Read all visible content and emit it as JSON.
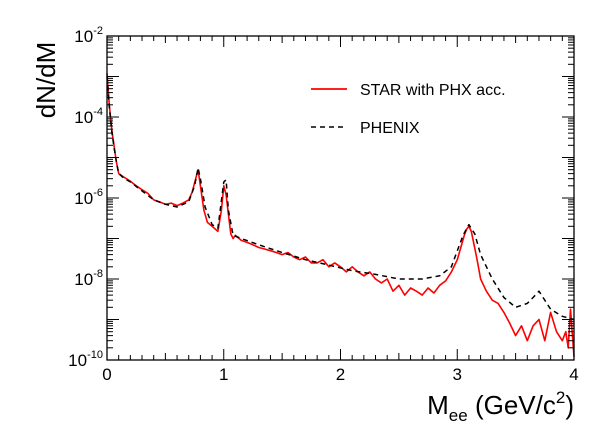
{
  "chart_data": {
    "type": "line",
    "title": "",
    "xlabel": {
      "base": "M",
      "sub": "ee",
      "rest": " (GeV/c",
      "sup": "2",
      "end": ")"
    },
    "ylabel": "dN/dM",
    "xlim": [
      0,
      4
    ],
    "ylim": [
      1e-10,
      0.01
    ],
    "yscale": "log",
    "grid": false,
    "legend_position": "top-right",
    "x_ticks": [
      {
        "value": 0,
        "label": "0"
      },
      {
        "value": 1,
        "label": "1"
      },
      {
        "value": 2,
        "label": "2"
      },
      {
        "value": 3,
        "label": "3"
      },
      {
        "value": 4,
        "label": "4"
      }
    ],
    "y_ticks": [
      {
        "value": 1e-10,
        "base": "10",
        "exp": "-10"
      },
      {
        "value": 1e-08,
        "base": "10",
        "exp": "-8"
      },
      {
        "value": 1e-06,
        "base": "10",
        "exp": "-6"
      },
      {
        "value": 0.0001,
        "base": "10",
        "exp": "-4"
      },
      {
        "value": 0.01,
        "base": "10",
        "exp": "-2"
      }
    ],
    "series": [
      {
        "name": "STAR with PHX acc.",
        "color": "#ff0000",
        "style": "solid",
        "x": [
          0.0,
          0.02,
          0.04,
          0.06,
          0.08,
          0.1,
          0.15,
          0.2,
          0.25,
          0.3,
          0.35,
          0.4,
          0.45,
          0.5,
          0.55,
          0.6,
          0.65,
          0.7,
          0.73,
          0.76,
          0.78,
          0.8,
          0.83,
          0.86,
          0.9,
          0.95,
          0.98,
          1.0,
          1.02,
          1.04,
          1.06,
          1.08,
          1.1,
          1.15,
          1.2,
          1.25,
          1.3,
          1.35,
          1.4,
          1.45,
          1.5,
          1.55,
          1.6,
          1.65,
          1.7,
          1.75,
          1.8,
          1.85,
          1.9,
          1.95,
          2.0,
          2.05,
          2.1,
          2.15,
          2.2,
          2.25,
          2.3,
          2.35,
          2.4,
          2.45,
          2.5,
          2.55,
          2.6,
          2.65,
          2.7,
          2.75,
          2.8,
          2.85,
          2.9,
          2.95,
          3.0,
          3.03,
          3.06,
          3.08,
          3.1,
          3.12,
          3.14,
          3.17,
          3.2,
          3.25,
          3.3,
          3.35,
          3.4,
          3.45,
          3.5,
          3.55,
          3.6,
          3.65,
          3.7,
          3.75,
          3.8,
          3.85,
          3.9,
          3.93,
          3.95,
          3.97,
          4.0
        ],
        "values": [
          0.0012,
          0.0002,
          5e-05,
          2e-05,
          8e-06,
          4e-06,
          3.2e-06,
          2.6e-06,
          2e-06,
          1.6e-06,
          1.3e-06,
          9e-07,
          8e-07,
          7e-07,
          7.5e-07,
          6.5e-07,
          7.5e-07,
          9e-07,
          1.4e-06,
          3e-06,
          5e-06,
          2e-06,
          5e-07,
          2.5e-07,
          2e-07,
          1.5e-07,
          5e-07,
          2e-06,
          1.2e-06,
          4e-07,
          1.3e-07,
          1e-07,
          1.2e-07,
          9e-08,
          8e-08,
          7e-08,
          6e-08,
          5.5e-08,
          5e-08,
          4.5e-08,
          4e-08,
          4.5e-08,
          3.5e-08,
          3e-08,
          3.5e-08,
          2.5e-08,
          2.5e-08,
          3e-08,
          2e-08,
          2.5e-08,
          2e-08,
          1.5e-08,
          2e-08,
          1.5e-08,
          1.2e-08,
          1.5e-08,
          1e-08,
          8e-09,
          1e-08,
          5e-09,
          7e-09,
          4e-09,
          6e-09,
          5e-09,
          4e-09,
          6e-09,
          4.5e-09,
          7e-09,
          9e-09,
          1.5e-08,
          3e-08,
          6e-08,
          1.2e-07,
          1.7e-07,
          2e-07,
          1.5e-07,
          8e-08,
          3e-08,
          1e-08,
          5e-09,
          3e-09,
          2.5e-09,
          1.5e-09,
          8e-10,
          4e-10,
          7e-10,
          3e-10,
          7e-10,
          1e-09,
          3e-10,
          1.5e-09,
          5e-10,
          3e-10,
          5e-10,
          2e-10,
          1.8e-09,
          1.2e-10
        ]
      },
      {
        "name": "PHENIX",
        "color": "#000000",
        "style": "dashed",
        "x": [
          0.0,
          0.02,
          0.04,
          0.06,
          0.08,
          0.1,
          0.15,
          0.2,
          0.3,
          0.4,
          0.5,
          0.6,
          0.7,
          0.75,
          0.78,
          0.8,
          0.84,
          0.9,
          0.95,
          1.0,
          1.02,
          1.04,
          1.08,
          1.15,
          1.3,
          1.5,
          1.7,
          1.9,
          2.1,
          2.3,
          2.5,
          2.7,
          2.85,
          2.95,
          3.0,
          3.05,
          3.1,
          3.15,
          3.2,
          3.3,
          3.4,
          3.5,
          3.6,
          3.65,
          3.7,
          3.75,
          3.8,
          3.9,
          4.0
        ],
        "values": [
          0.001,
          0.00018,
          4.5e-05,
          1.8e-05,
          8e-06,
          4e-06,
          3e-06,
          2.5e-06,
          1.5e-06,
          9e-07,
          7e-07,
          6e-07,
          8e-07,
          2e-06,
          5.5e-06,
          3e-06,
          6e-07,
          2.2e-07,
          1.8e-07,
          2.5e-06,
          2.8e-06,
          5e-07,
          1.2e-07,
          1e-07,
          7e-08,
          4.5e-08,
          3e-08,
          2.2e-08,
          1.6e-08,
          1.3e-08,
          1e-08,
          1e-08,
          1.2e-08,
          2e-08,
          5e-08,
          1.2e-07,
          2.2e-07,
          1.3e-07,
          4e-08,
          1e-08,
          3.5e-09,
          2e-09,
          2.5e-09,
          3.5e-09,
          5e-09,
          3e-09,
          1.8e-09,
          1.2e-09,
          1e-09
        ]
      }
    ]
  }
}
